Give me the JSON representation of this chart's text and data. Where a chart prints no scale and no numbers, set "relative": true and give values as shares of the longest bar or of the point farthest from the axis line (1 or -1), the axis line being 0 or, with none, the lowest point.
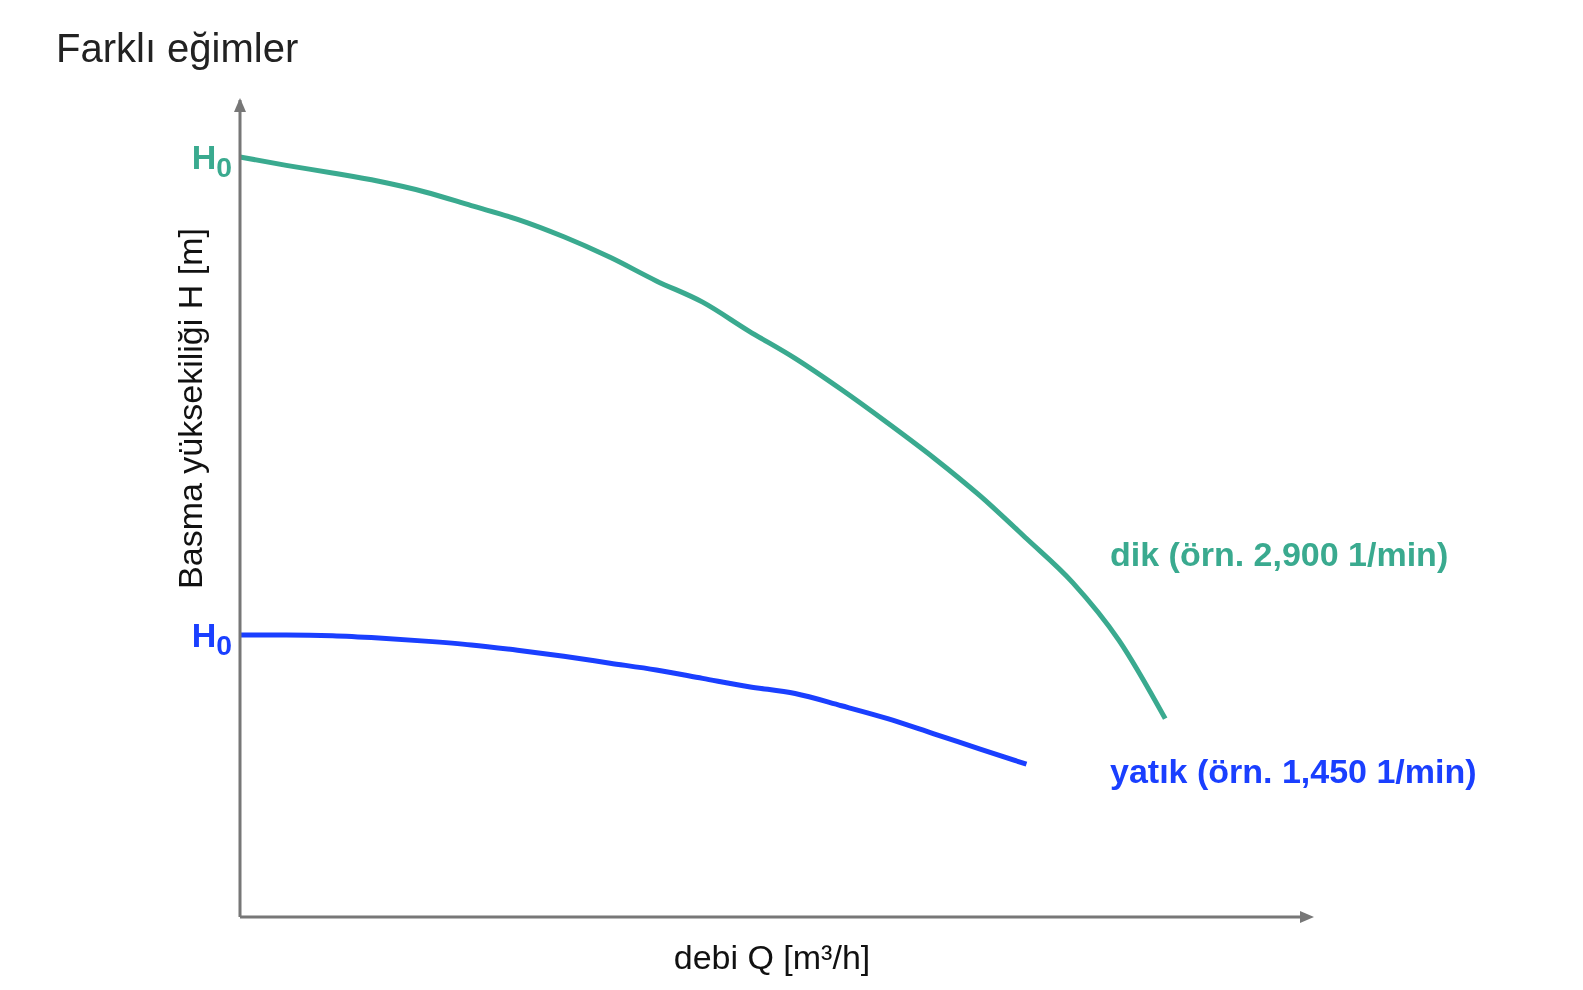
{
  "chart_data": {
    "type": "line",
    "title": "Farklı eğimler",
    "xlabel": "debi Q [m³/h]",
    "ylabel": "Basma yüksekiliği H [m]",
    "relative": true,
    "grid": false,
    "legend": false,
    "marker": "none",
    "line_style": "solid",
    "categories": [
      null,
      null,
      null,
      null,
      null,
      null,
      null,
      null,
      null,
      null,
      null,
      null,
      null,
      null,
      null,
      null,
      null,
      null,
      null,
      null,
      null,
      null,
      null,
      null
    ],
    "series": [
      {
        "name": "dik (örn. 2,900 1/min)",
        "color": "#3aaa8f",
        "values": [
          1.0,
          0.989,
          0.979,
          0.968,
          0.954,
          0.936,
          0.918,
          0.895,
          0.868,
          0.837,
          0.809,
          0.771,
          0.735,
          0.694,
          0.65,
          0.604,
          0.554,
          0.498,
          0.44,
          0.364,
          0.261,
          null,
          null,
          null
        ]
      },
      {
        "name": "yatık (örn. 1,450 1/min)",
        "color": "#1a3fff",
        "values": [
          0.371,
          0.371,
          0.37,
          0.367,
          0.363,
          0.358,
          0.351,
          0.343,
          0.334,
          0.325,
          0.314,
          0.303,
          0.294,
          0.278,
          0.261,
          0.241,
          0.221,
          0.201,
          null,
          null,
          null,
          null,
          null,
          null
        ]
      }
    ],
    "annotations": [
      "H$_{0}$",
      "H$_{0}$"
    ]
  }
}
